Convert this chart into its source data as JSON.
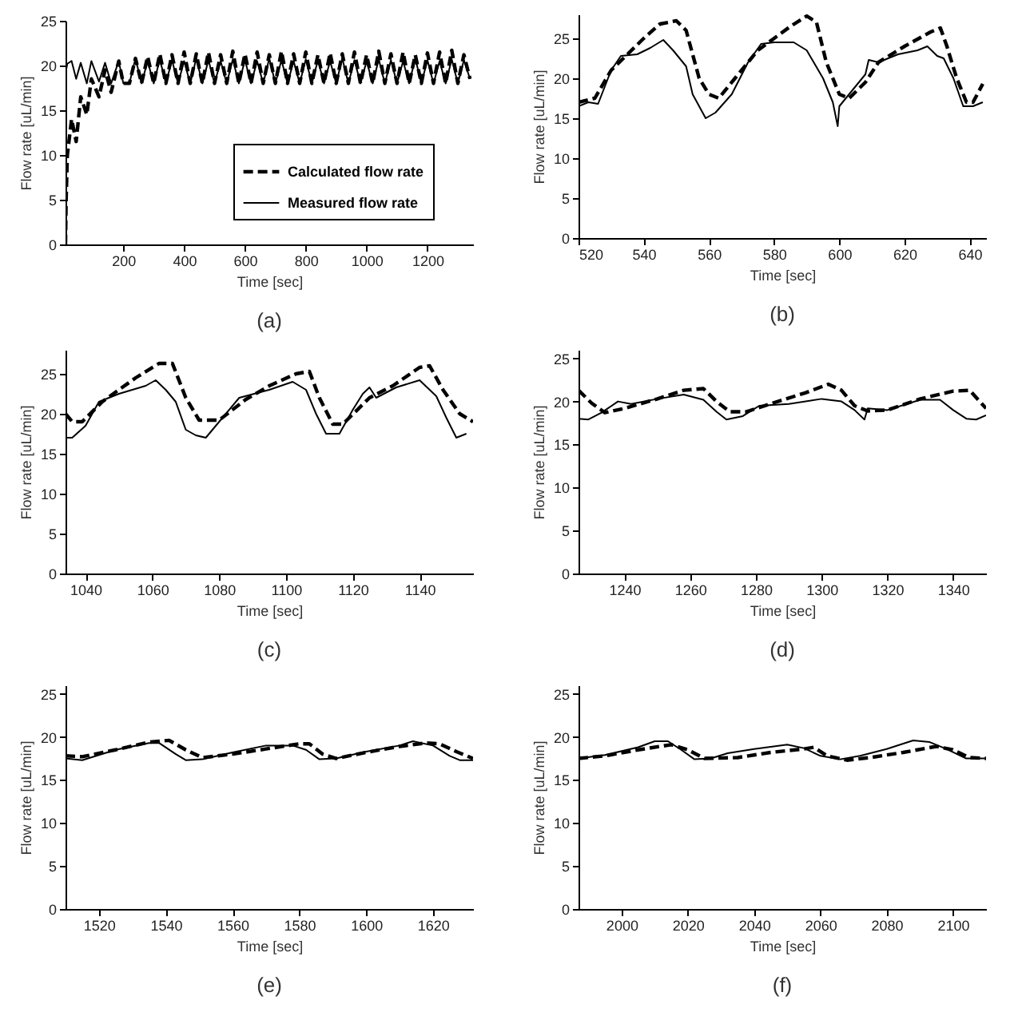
{
  "chart_data": [
    {
      "type": "line",
      "xlabel": "Time [sec]",
      "ylabel": "Flow rate [uL/min]",
      "annotations": [
        "(a)"
      ],
      "xlim": [
        10,
        1350
      ],
      "xticks": [
        200,
        400,
        600,
        800,
        1000,
        1200
      ],
      "ylim": [
        0,
        25
      ],
      "yticks": [
        0,
        5,
        10,
        15,
        20,
        25
      ],
      "legend": "right",
      "x": [
        10,
        12,
        16,
        30,
        45,
        60,
        80,
        95,
        120,
        140,
        160,
        185,
        200,
        220,
        240,
        260,
        280,
        300,
        320,
        340,
        360,
        380,
        400,
        420,
        440,
        460,
        480,
        500,
        520,
        540,
        560,
        580,
        600,
        620,
        640,
        660,
        680,
        700,
        720,
        740,
        760,
        780,
        800,
        820,
        840,
        860,
        880,
        900,
        920,
        940,
        960,
        980,
        1000,
        1020,
        1040,
        1060,
        1080,
        1100,
        1120,
        1140,
        1160,
        1180,
        1200,
        1220,
        1240,
        1260,
        1280,
        1300,
        1320,
        1340
      ],
      "series": [
        {
          "name": "Calculated flow rate",
          "color": "#000000",
          "line_style": "dashed",
          "values": [
            0,
            5,
            10,
            14,
            11.5,
            16.5,
            14.5,
            18.5,
            16.5,
            19.5,
            17,
            20.5,
            18,
            18,
            20.8,
            18,
            21,
            18,
            21.3,
            18,
            21.2,
            18,
            21.5,
            18,
            21.3,
            18,
            21.5,
            18,
            21.2,
            18,
            21.6,
            18,
            21.3,
            18,
            21.5,
            18,
            21.2,
            18,
            21.6,
            18,
            21.3,
            18,
            21.5,
            18,
            21.2,
            18,
            21.4,
            18,
            21.3,
            18,
            21.5,
            18,
            21.2,
            18,
            21.6,
            18,
            21.3,
            18,
            21.5,
            18,
            21.2,
            18,
            21.4,
            18,
            21.5,
            18,
            21.7,
            18,
            21.2,
            18.5
          ]
        },
        {
          "name": "Measured flow rate",
          "color": "#000000",
          "line_style": "solid",
          "values": [
            19,
            19.5,
            20.2,
            20.5,
            18.5,
            20.3,
            18,
            20.5,
            18.2,
            20.3,
            18,
            20.5,
            18,
            18,
            20.8,
            18,
            20.5,
            18,
            20.7,
            18,
            20.6,
            18,
            20.5,
            18,
            20.8,
            18,
            20.6,
            18,
            20.5,
            18,
            20.7,
            18,
            20.6,
            18,
            20.5,
            18,
            20.8,
            18,
            20.6,
            18,
            20.5,
            18,
            20.7,
            18,
            20.6,
            18,
            20.5,
            18,
            20.8,
            18,
            20.6,
            18,
            20.5,
            18,
            20.7,
            18,
            20.6,
            18,
            20.5,
            18,
            20.8,
            18,
            20.6,
            18,
            20.5,
            18,
            20.7,
            18,
            20.6,
            18.5
          ]
        }
      ]
    },
    {
      "type": "line",
      "xlabel": "Time [sec]",
      "ylabel": "Flow rate [uL/min]",
      "annotations": [
        "(b)"
      ],
      "xlim": [
        520,
        645
      ],
      "xticks": [
        520,
        540,
        560,
        580,
        600,
        620,
        640
      ],
      "ylim": [
        0,
        28
      ],
      "yticks": [
        0,
        5,
        10,
        15,
        20,
        25
      ],
      "series": [
        {
          "color": "#000000",
          "line_style": "dashed",
          "x": [
            520,
            525,
            530,
            535,
            540,
            545,
            550,
            553,
            557,
            560,
            563,
            568,
            575,
            580,
            585,
            590,
            593,
            596,
            600,
            603,
            608,
            612,
            620,
            628,
            631,
            633,
            636,
            639,
            641,
            644
          ],
          "values": [
            17,
            17.5,
            21,
            23,
            25,
            26.8,
            27.2,
            26,
            20,
            18,
            17.5,
            20,
            23.5,
            25,
            26.5,
            27.8,
            27,
            22,
            18,
            17.5,
            19.5,
            22,
            24,
            25.8,
            26.3,
            24,
            20,
            17,
            17,
            19.3
          ]
        },
        {
          "color": "#000000",
          "line_style": "solid",
          "x": [
            520,
            523,
            526,
            530,
            533,
            538,
            542,
            546,
            549,
            553,
            555,
            559,
            562,
            567,
            572,
            576,
            580,
            586,
            590,
            595,
            598,
            599.5,
            600,
            604,
            608,
            609,
            612,
            618,
            624,
            627,
            630,
            632,
            635,
            638,
            641,
            644
          ],
          "values": [
            16.5,
            17,
            16.8,
            21,
            22.8,
            23,
            23.8,
            24.8,
            23.5,
            21.5,
            18,
            15,
            15.7,
            18,
            22,
            24.3,
            24.5,
            24.5,
            23.5,
            20,
            17,
            14,
            16.5,
            18.5,
            20.5,
            22.3,
            22,
            23,
            23.5,
            24,
            22.8,
            22.5,
            20,
            16.5,
            16.5,
            17
          ]
        }
      ]
    },
    {
      "type": "line",
      "xlabel": "Time [sec]",
      "ylabel": "Flow rate [uL/min]",
      "annotations": [
        "(c)"
      ],
      "xlim": [
        1034,
        1156
      ],
      "xticks": [
        1040,
        1060,
        1080,
        1100,
        1120,
        1140
      ],
      "ylim": [
        0,
        28
      ],
      "yticks": [
        0,
        5,
        10,
        15,
        20,
        25
      ],
      "series": [
        {
          "color": "#000000",
          "line_style": "dashed",
          "x": [
            1034,
            1036,
            1039,
            1045,
            1055,
            1062,
            1066,
            1070,
            1074,
            1080,
            1088,
            1095,
            1103,
            1107,
            1110,
            1114,
            1117,
            1125,
            1132,
            1140,
            1143,
            1147,
            1152,
            1156
          ],
          "values": [
            20,
            19,
            19,
            21.5,
            24.5,
            26.3,
            26.3,
            22,
            19.2,
            19.2,
            21.8,
            23.5,
            25,
            25.3,
            22,
            18.7,
            18.7,
            22,
            23.5,
            25.8,
            26,
            23,
            20,
            19
          ]
        },
        {
          "color": "#000000",
          "line_style": "solid",
          "x": [
            1034,
            1036,
            1040,
            1044,
            1050,
            1058,
            1061,
            1064,
            1067,
            1070,
            1073,
            1076,
            1079,
            1086,
            1095,
            1102,
            1106,
            1109,
            1112,
            1116,
            1120,
            1123,
            1125,
            1127,
            1133,
            1140,
            1145,
            1148,
            1151,
            1154
          ],
          "values": [
            17,
            17,
            18.5,
            21.5,
            22.5,
            23.5,
            24.2,
            23,
            21.5,
            18,
            17.3,
            17,
            18.5,
            22,
            23,
            24,
            23,
            20,
            17.5,
            17.5,
            20.5,
            22.5,
            23.3,
            22,
            23.3,
            24.2,
            22.2,
            19.5,
            17,
            17.5
          ]
        }
      ]
    },
    {
      "type": "line",
      "xlabel": "Time [sec]",
      "ylabel": "Flow rate [uL/min]",
      "annotations": [
        "(d)"
      ],
      "xlim": [
        1226,
        1350
      ],
      "xticks": [
        1240,
        1260,
        1280,
        1300,
        1320,
        1340
      ],
      "ylim": [
        0,
        26
      ],
      "yticks": [
        0,
        5,
        10,
        15,
        20,
        25
      ],
      "series": [
        {
          "color": "#000000",
          "line_style": "dashed",
          "x": [
            1226,
            1230,
            1234,
            1240,
            1250,
            1258,
            1264,
            1268,
            1272,
            1277,
            1285,
            1295,
            1302,
            1306,
            1310,
            1314,
            1320,
            1330,
            1340,
            1345,
            1350
          ],
          "values": [
            21.3,
            19.8,
            18.7,
            19.2,
            20.3,
            21.3,
            21.5,
            20,
            18.8,
            18.8,
            19.8,
            21,
            22,
            21.3,
            19.5,
            18.9,
            19,
            20.3,
            21.2,
            21.3,
            19.2
          ]
        },
        {
          "color": "#000000",
          "line_style": "solid",
          "x": [
            1226,
            1229,
            1233,
            1238,
            1242,
            1250,
            1258,
            1264,
            1268,
            1271,
            1276,
            1281,
            1290,
            1300,
            1306,
            1310,
            1313,
            1314,
            1320,
            1330,
            1336,
            1340,
            1344,
            1347,
            1350
          ],
          "values": [
            18,
            17.9,
            18.7,
            20,
            19.7,
            20.3,
            20.8,
            20.2,
            18.8,
            17.9,
            18.3,
            19.5,
            19.7,
            20.3,
            20,
            19,
            17.9,
            19.2,
            19,
            20.2,
            20.2,
            19,
            18,
            17.9,
            18.4
          ]
        }
      ]
    },
    {
      "type": "line",
      "xlabel": "Time [sec]",
      "ylabel": "Flow rate [uL/min]",
      "annotations": [
        "(e)"
      ],
      "xlim": [
        1510,
        1632
      ],
      "xticks": [
        1520,
        1540,
        1560,
        1580,
        1600,
        1620
      ],
      "ylim": [
        0,
        26
      ],
      "yticks": [
        0,
        5,
        10,
        15,
        20,
        25
      ],
      "series": [
        {
          "color": "#000000",
          "line_style": "dashed",
          "x": [
            1510,
            1515,
            1525,
            1535,
            1541,
            1546,
            1551,
            1560,
            1570,
            1580,
            1583,
            1587,
            1591,
            1600,
            1610,
            1618,
            1622,
            1627,
            1632
          ],
          "values": [
            17.8,
            17.7,
            18.5,
            19.4,
            19.6,
            18.5,
            17.6,
            18,
            18.6,
            19.2,
            19.2,
            18,
            17.5,
            18.2,
            18.9,
            19.3,
            19.2,
            18.3,
            17.5
          ]
        },
        {
          "color": "#000000",
          "line_style": "solid",
          "x": [
            1510,
            1515,
            1525,
            1535,
            1538,
            1543,
            1546,
            1551,
            1560,
            1570,
            1578,
            1582,
            1586,
            1591,
            1600,
            1610,
            1614,
            1620,
            1625,
            1628,
            1632
          ],
          "values": [
            17.5,
            17.3,
            18.5,
            19.3,
            19.3,
            18,
            17.3,
            17.4,
            18.2,
            19,
            19,
            18.5,
            17.4,
            17.5,
            18.3,
            19,
            19.5,
            19,
            17.8,
            17.3,
            17.3
          ]
        }
      ]
    },
    {
      "type": "line",
      "xlabel": "Time [sec]",
      "ylabel": "Flow rate [uL/min]",
      "annotations": [
        "(f)"
      ],
      "xlim": [
        1987,
        2110
      ],
      "xticks": [
        2000,
        2020,
        2040,
        2060,
        2080,
        2100
      ],
      "ylim": [
        0,
        26
      ],
      "yticks": [
        0,
        5,
        10,
        15,
        20,
        25
      ],
      "series": [
        {
          "color": "#000000",
          "line_style": "dashed",
          "x": [
            1987,
            1995,
            2005,
            2015,
            2020,
            2025,
            2035,
            2045,
            2055,
            2058,
            2062,
            2068,
            2075,
            2085,
            2095,
            2100,
            2105,
            2110
          ],
          "values": [
            17.5,
            17.8,
            18.5,
            19.1,
            18.5,
            17.5,
            17.6,
            18.2,
            18.6,
            18.8,
            17.8,
            17.3,
            17.6,
            18.2,
            18.9,
            18.5,
            17.6,
            17.5
          ]
        },
        {
          "color": "#000000",
          "line_style": "solid",
          "x": [
            1987,
            1995,
            2005,
            2010,
            2014,
            2018,
            2022,
            2027,
            2032,
            2040,
            2050,
            2055,
            2060,
            2066,
            2072,
            2080,
            2088,
            2093,
            2098,
            2104,
            2110
          ],
          "values": [
            17.5,
            17.9,
            18.8,
            19.5,
            19.5,
            18.5,
            17.4,
            17.5,
            18.1,
            18.6,
            19.1,
            18.7,
            17.8,
            17.4,
            17.8,
            18.6,
            19.6,
            19.4,
            18.6,
            17.5,
            17.5
          ]
        }
      ]
    }
  ]
}
